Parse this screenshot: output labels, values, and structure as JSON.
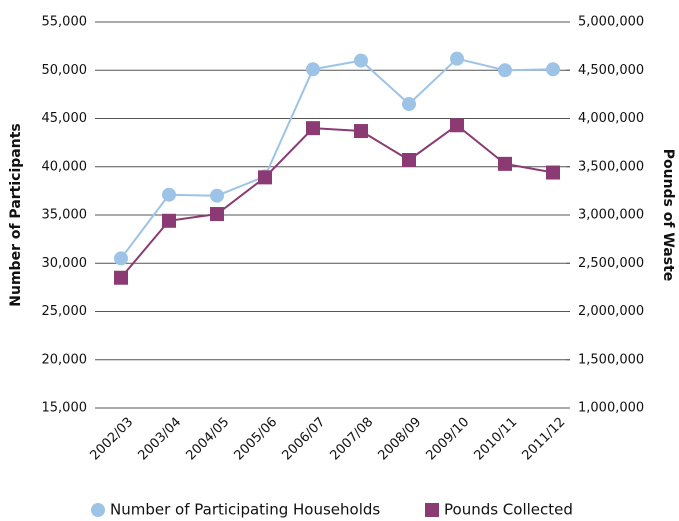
{
  "chart_data": {
    "type": "line",
    "y_label": "Number of Participants",
    "y2_label": "Pounds of Waste",
    "categories": [
      "2002/03",
      "2003/04",
      "2004/05",
      "2005/06",
      "2006/07",
      "2007/08",
      "2008/09",
      "2009/10",
      "2010/11",
      "2011/12"
    ],
    "series": [
      {
        "name": "Number of Participating Households",
        "color": "#9dc3e6",
        "marker": "circle",
        "values": [
          30500,
          37100,
          37000,
          39000,
          50100,
          51000,
          46500,
          51200,
          50000,
          50100
        ]
      },
      {
        "name": "Pounds Collected",
        "color": "#8b3a73",
        "marker": "square",
        "axis": "y2",
        "values": [
          2350000,
          2940000,
          3010000,
          3390000,
          3900000,
          3870000,
          3570000,
          3930000,
          3530000,
          3440000
        ]
      }
    ],
    "ylim": [
      15000,
      55000
    ],
    "yticks": [
      {
        "value": 15000,
        "label": "15,000"
      },
      {
        "value": 20000,
        "label": "20,000"
      },
      {
        "value": 25000,
        "label": "25,000"
      },
      {
        "value": 30000,
        "label": "30,000"
      },
      {
        "value": 35000,
        "label": "35,000"
      },
      {
        "value": 40000,
        "label": "40,000"
      },
      {
        "value": 45000,
        "label": "45,000"
      },
      {
        "value": 50000,
        "label": "50,000"
      },
      {
        "value": 55000,
        "label": "55,000"
      }
    ],
    "y2lim": [
      1000000,
      5000000
    ],
    "y2ticks": [
      {
        "value": 1000000,
        "label": "1,000,000"
      },
      {
        "value": 1500000,
        "label": "1,500,000"
      },
      {
        "value": 2000000,
        "label": "2,000,000"
      },
      {
        "value": 2500000,
        "label": "2,500,000"
      },
      {
        "value": 3000000,
        "label": "3,000,000"
      },
      {
        "value": 3500000,
        "label": "3,500,000"
      },
      {
        "value": 4000000,
        "label": "4,000,000"
      },
      {
        "value": 4500000,
        "label": "4,500,000"
      },
      {
        "value": 5000000,
        "label": "5,000,000"
      }
    ],
    "grid": true,
    "legend": "bottom"
  }
}
